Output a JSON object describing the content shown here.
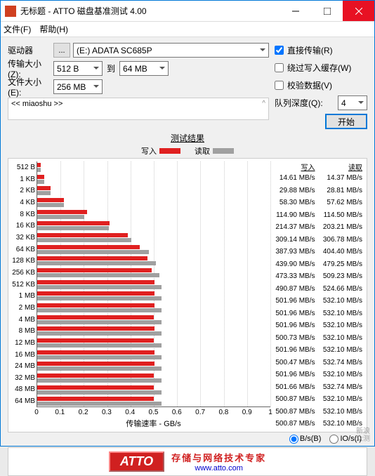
{
  "window": {
    "title": "无标题 - ATTO 磁盘基准测试 4.00"
  },
  "menu": {
    "file": "文件(F)",
    "help": "帮助(H)"
  },
  "controls": {
    "drive_label": "驱动器",
    "drive_value": "(E:) ADATA SC685P",
    "transfer_label": "传输大小(Z):",
    "transfer_from": "512 B",
    "to_label": "到",
    "transfer_to": "64 MB",
    "filesize_label": "文件大小(E):",
    "filesize_value": "256 MB",
    "browse_btn": "..."
  },
  "options": {
    "direct": "直接传输(R)",
    "direct_checked": true,
    "bypass": "绕过写入缓存(W)",
    "bypass_checked": false,
    "verify": "校验数据(V)",
    "verify_checked": false,
    "queue_label": "队列深度(Q):",
    "queue_value": "4",
    "start_btn": "开始"
  },
  "textarea": "<< miaoshu >>",
  "results": {
    "title": "测试结果",
    "write_label": "写入",
    "read_label": "读取",
    "write_color": "#e02020",
    "read_color": "#a0a0a0",
    "x_label": "传输速率 - GB/s",
    "x_max": 1.0,
    "x_ticks": [
      "0",
      "0.1",
      "0.2",
      "0.3",
      "0.4",
      "0.5",
      "0.6",
      "0.7",
      "0.8",
      "0.9",
      "1"
    ],
    "max_speed": 540,
    "rows": [
      {
        "label": "512 B",
        "write": 14.61,
        "read": 14.37
      },
      {
        "label": "1 KB",
        "write": 29.88,
        "read": 28.81
      },
      {
        "label": "2 KB",
        "write": 58.3,
        "read": 57.62
      },
      {
        "label": "4 KB",
        "write": 114.9,
        "read": 114.5
      },
      {
        "label": "8 KB",
        "write": 214.37,
        "read": 203.21
      },
      {
        "label": "16 KB",
        "write": 309.14,
        "read": 306.78
      },
      {
        "label": "32 KB",
        "write": 387.93,
        "read": 404.4
      },
      {
        "label": "64 KB",
        "write": 439.9,
        "read": 479.25
      },
      {
        "label": "128 KB",
        "write": 473.33,
        "read": 509.23
      },
      {
        "label": "256 KB",
        "write": 490.87,
        "read": 524.66
      },
      {
        "label": "512 KB",
        "write": 501.96,
        "read": 532.1
      },
      {
        "label": "1 MB",
        "write": 501.96,
        "read": 532.1
      },
      {
        "label": "2 MB",
        "write": 501.96,
        "read": 532.1
      },
      {
        "label": "4 MB",
        "write": 500.73,
        "read": 532.1
      },
      {
        "label": "8 MB",
        "write": 501.96,
        "read": 532.1
      },
      {
        "label": "12 MB",
        "write": 500.47,
        "read": 532.74
      },
      {
        "label": "16 MB",
        "write": 501.96,
        "read": 532.1
      },
      {
        "label": "24 MB",
        "write": 501.66,
        "read": 532.74
      },
      {
        "label": "32 MB",
        "write": 500.87,
        "read": 532.1
      },
      {
        "label": "48 MB",
        "write": 500.87,
        "read": 532.1
      },
      {
        "label": "64 MB",
        "write": 500.87,
        "read": 532.1
      }
    ],
    "unit": "MB/s"
  },
  "radios": {
    "bps": "B/s(B)",
    "iops": "IO/s(I)"
  },
  "footer": {
    "logo": "ATTO",
    "tagline": "存储与网络技术专家",
    "url": "www.atto.com"
  },
  "watermark": {
    "l1": "新浪",
    "l2": "众测"
  }
}
